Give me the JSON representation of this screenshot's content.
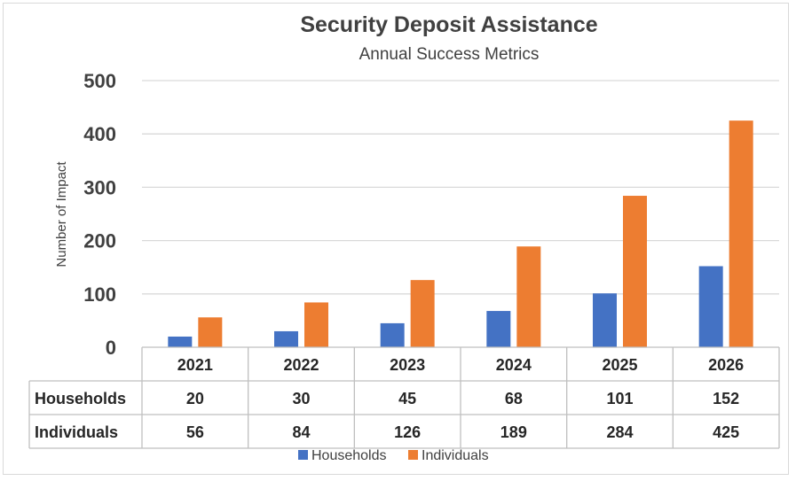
{
  "chart_data": {
    "type": "bar",
    "title": "Security Deposit Assistance",
    "subtitle": "Annual Success Metrics",
    "ylabel": "Number of Impact",
    "xlabel": "",
    "ylim": [
      0,
      500
    ],
    "yticks": [
      0,
      100,
      200,
      300,
      400,
      500
    ],
    "grid": true,
    "legend_position": "bottom",
    "data_table": true,
    "categories": [
      "2021",
      "2022",
      "2023",
      "2024",
      "2025",
      "2026"
    ],
    "series": [
      {
        "name": "Households",
        "color": "#4472c4",
        "values": [
          20,
          30,
          45,
          68,
          101,
          152
        ]
      },
      {
        "name": "Individuals",
        "color": "#ed7d31",
        "values": [
          56,
          84,
          126,
          189,
          284,
          425
        ]
      }
    ]
  }
}
